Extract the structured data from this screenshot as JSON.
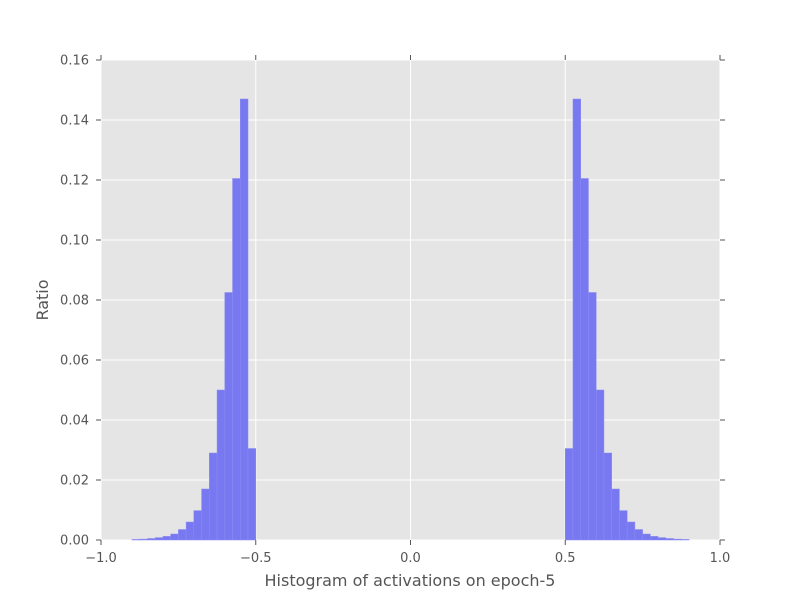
{
  "chart_data": {
    "type": "bar",
    "title": "",
    "xlabel": "Histogram of activations on epoch-5",
    "ylabel": "Ratio",
    "xlim": [
      -1.0,
      1.0
    ],
    "ylim": [
      0.0,
      0.16
    ],
    "grid": true,
    "bar_color": "#7878f0",
    "background_color": "#e5e5e5",
    "grid_color": "#ffffff",
    "bin_width": 0.025,
    "x_tick_labels": [
      "−1.0",
      "−0.5",
      "0.0",
      "0.5",
      "1.0"
    ],
    "x_tick_values": [
      -1.0,
      -0.5,
      0.0,
      0.5,
      1.0
    ],
    "y_tick_labels": [
      "0.00",
      "0.02",
      "0.04",
      "0.06",
      "0.08",
      "0.10",
      "0.12",
      "0.14",
      "0.16"
    ],
    "y_tick_values": [
      0.0,
      0.02,
      0.04,
      0.06,
      0.08,
      0.1,
      0.12,
      0.14,
      0.16
    ],
    "bins": [
      {
        "x0": -0.9,
        "value": 0.0002
      },
      {
        "x0": -0.875,
        "value": 0.0003
      },
      {
        "x0": -0.85,
        "value": 0.0005
      },
      {
        "x0": -0.825,
        "value": 0.0008
      },
      {
        "x0": -0.8,
        "value": 0.0012
      },
      {
        "x0": -0.775,
        "value": 0.002
      },
      {
        "x0": -0.75,
        "value": 0.0035
      },
      {
        "x0": -0.725,
        "value": 0.006
      },
      {
        "x0": -0.7,
        "value": 0.0098
      },
      {
        "x0": -0.675,
        "value": 0.017
      },
      {
        "x0": -0.65,
        "value": 0.029
      },
      {
        "x0": -0.625,
        "value": 0.05
      },
      {
        "x0": -0.6,
        "value": 0.0825
      },
      {
        "x0": -0.575,
        "value": 0.1205
      },
      {
        "x0": -0.55,
        "value": 0.147
      },
      {
        "x0": -0.525,
        "value": 0.0305
      },
      {
        "x0": 0.5,
        "value": 0.0305
      },
      {
        "x0": 0.525,
        "value": 0.147
      },
      {
        "x0": 0.55,
        "value": 0.1205
      },
      {
        "x0": 0.575,
        "value": 0.0825
      },
      {
        "x0": 0.6,
        "value": 0.05
      },
      {
        "x0": 0.625,
        "value": 0.029
      },
      {
        "x0": 0.65,
        "value": 0.017
      },
      {
        "x0": 0.675,
        "value": 0.0098
      },
      {
        "x0": 0.7,
        "value": 0.006
      },
      {
        "x0": 0.725,
        "value": 0.0035
      },
      {
        "x0": 0.75,
        "value": 0.002
      },
      {
        "x0": 0.775,
        "value": 0.0012
      },
      {
        "x0": 0.8,
        "value": 0.0008
      },
      {
        "x0": 0.825,
        "value": 0.0005
      },
      {
        "x0": 0.85,
        "value": 0.0003
      },
      {
        "x0": 0.875,
        "value": 0.0002
      }
    ]
  }
}
